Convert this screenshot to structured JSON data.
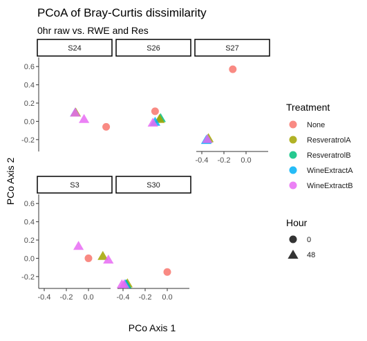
{
  "title": "PCoA of Bray-Curtis dissimilarity",
  "subtitle": "0hr raw vs. RWE and Res",
  "chart_data": {
    "type": "scatter",
    "xlabel": "PCo Axis 1",
    "ylabel": "PCo Axis 2",
    "xlim": [
      -0.45,
      0.2
    ],
    "ylim": [
      -0.33,
      0.7
    ],
    "x_ticks": [
      -0.4,
      -0.2,
      0.0
    ],
    "x_tick_labels": [
      "-0.4",
      "-0.2",
      "0.0"
    ],
    "y_ticks": [
      -0.2,
      0.0,
      0.2,
      0.4,
      0.6
    ],
    "y_tick_labels": [
      "-0.2",
      "0.0",
      "0.2",
      "0.4",
      "0.6"
    ],
    "grid": false,
    "legend_position": "right",
    "colors": {
      "None": "#F8766D",
      "ResveratrolA": "#A3A500",
      "ResveratrolB": "#00BF7D",
      "WineExtractA": "#00B0F6",
      "WineExtractB": "#E76BF3"
    },
    "facets": [
      {
        "label": "S24",
        "points": [
          {
            "x": -0.12,
            "y": 0.09,
            "treatment": "WineExtractA",
            "hour": 48
          },
          {
            "x": -0.115,
            "y": 0.09,
            "treatment": "ResveratrolA",
            "hour": 48
          },
          {
            "x": -0.12,
            "y": 0.09,
            "treatment": "WineExtractB",
            "hour": 48
          },
          {
            "x": -0.04,
            "y": 0.02,
            "treatment": "WineExtractB",
            "hour": 48
          },
          {
            "x": 0.16,
            "y": -0.06,
            "treatment": "None",
            "hour": 0
          }
        ]
      },
      {
        "label": "S26",
        "points": [
          {
            "x": -0.11,
            "y": 0.11,
            "treatment": "None",
            "hour": 0
          },
          {
            "x": -0.06,
            "y": 0.03,
            "treatment": "ResveratrolB",
            "hour": 48
          },
          {
            "x": -0.07,
            "y": 0.02,
            "treatment": "ResveratrolA",
            "hour": 48
          },
          {
            "x": -0.11,
            "y": -0.01,
            "treatment": "WineExtractA",
            "hour": 48
          },
          {
            "x": -0.13,
            "y": -0.02,
            "treatment": "WineExtractB",
            "hour": 48
          }
        ]
      },
      {
        "label": "S27",
        "points": [
          {
            "x": -0.12,
            "y": 0.57,
            "treatment": "None",
            "hour": 0
          },
          {
            "x": -0.34,
            "y": -0.19,
            "treatment": "ResveratrolA",
            "hour": 48
          },
          {
            "x": -0.35,
            "y": -0.2,
            "treatment": "ResveratrolB",
            "hour": 48
          },
          {
            "x": -0.36,
            "y": -0.21,
            "treatment": "WineExtractA",
            "hour": 48
          },
          {
            "x": -0.35,
            "y": -0.2,
            "treatment": "WineExtractB",
            "hour": 48
          }
        ]
      },
      {
        "label": "S3",
        "points": [
          {
            "x": -0.09,
            "y": 0.13,
            "treatment": "WineExtractB",
            "hour": 48
          },
          {
            "x": 0.0,
            "y": 0.0,
            "treatment": "None",
            "hour": 0
          },
          {
            "x": 0.13,
            "y": 0.02,
            "treatment": "ResveratrolA",
            "hour": 48
          },
          {
            "x": 0.18,
            "y": -0.02,
            "treatment": "WineExtractB",
            "hour": 48
          }
        ]
      },
      {
        "label": "S30",
        "points": [
          {
            "x": 0.0,
            "y": -0.15,
            "treatment": "None",
            "hour": 0
          },
          {
            "x": -0.36,
            "y": -0.28,
            "treatment": "ResveratrolA",
            "hour": 48
          },
          {
            "x": -0.37,
            "y": -0.29,
            "treatment": "ResveratrolB",
            "hour": 48
          },
          {
            "x": -0.38,
            "y": -0.29,
            "treatment": "WineExtractA",
            "hour": 48
          },
          {
            "x": -0.39,
            "y": -0.29,
            "treatment": "WineExtractB",
            "hour": 48
          },
          {
            "x": -0.41,
            "y": -0.29,
            "treatment": "WineExtractB",
            "hour": 48
          }
        ]
      }
    ]
  },
  "legend": {
    "treatment_title": "Treatment",
    "treatments": [
      "None",
      "ResveratrolA",
      "ResveratrolB",
      "WineExtractA",
      "WineExtractB"
    ],
    "hour_title": "Hour",
    "hours": [
      "0",
      "48"
    ]
  }
}
